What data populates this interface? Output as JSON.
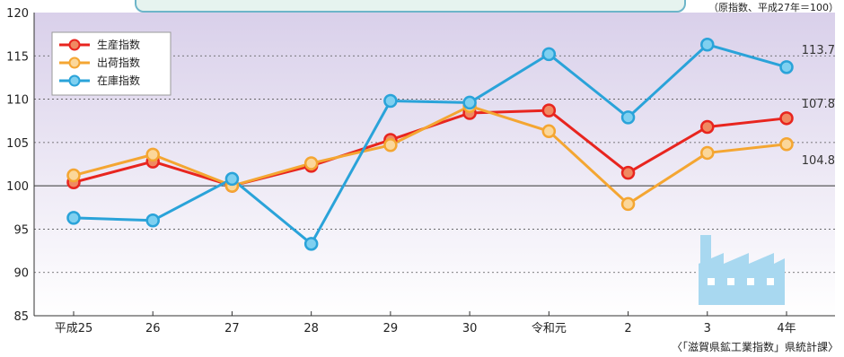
{
  "unit_note": "（原指数、平成27年＝100）",
  "source_note": "〈「滋賀県鉱工業指数」県統計課〉",
  "chart_data": {
    "type": "line",
    "categories": [
      "平成25",
      "26",
      "27",
      "28",
      "29",
      "30",
      "令和元",
      "2",
      "3",
      "4年"
    ],
    "ylim": [
      85,
      120
    ],
    "yticks": [
      85,
      90,
      95,
      100,
      105,
      110,
      115,
      120
    ],
    "grid": "dotted horizontal, solid line at 100",
    "legend_position": "top-left",
    "series": [
      {
        "name": "生産指数",
        "color": "#e8251f",
        "marker_fill": "#f08a62",
        "values": [
          100.4,
          102.8,
          100.0,
          102.3,
          105.3,
          108.4,
          108.7,
          101.5,
          106.8,
          107.8
        ]
      },
      {
        "name": "出荷指数",
        "color": "#f4a632",
        "marker_fill": "#fbd79a",
        "values": [
          101.2,
          103.6,
          100.0,
          102.6,
          104.7,
          109.2,
          106.3,
          97.9,
          103.8,
          104.8
        ]
      },
      {
        "name": "在庫指数",
        "color": "#2aa3d9",
        "marker_fill": "#7fd0f0",
        "values": [
          96.3,
          96.0,
          100.8,
          93.3,
          109.8,
          109.6,
          115.2,
          107.9,
          116.3,
          113.7
        ]
      }
    ],
    "annotations": [
      {
        "series": "在庫指数",
        "text": "113.7"
      },
      {
        "series": "生産指数",
        "text": "107.8"
      },
      {
        "series": "出荷指数",
        "text": "104.8"
      }
    ]
  },
  "colors": {
    "plot_bg_top": "#d9d0ea",
    "plot_bg_bottom": "#ffffff",
    "factory_icon": "#a8d8f0"
  },
  "decor": {
    "icon": "factory-icon"
  }
}
